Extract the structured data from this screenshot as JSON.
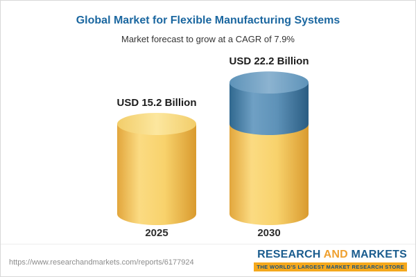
{
  "header": {
    "title": "Global Market for Flexible Manufacturing Systems",
    "subtitle": "Market forecast to grow at a CAGR of 7.9%"
  },
  "chart_data": {
    "type": "bar",
    "bar_style": "cylinder",
    "categories": [
      "2025",
      "2030"
    ],
    "values": [
      15.2,
      22.2
    ],
    "value_labels": [
      "USD 15.2 Billion",
      "USD 22.2 Billion"
    ],
    "unit": "USD Billion",
    "cagr": "7.9%",
    "title": "Global Market for Flexible Manufacturing Systems",
    "subtitle": "Market forecast to grow at a CAGR of 7.9%",
    "ylim": [
      0,
      24
    ],
    "grid": false,
    "legend": "none",
    "colors": {
      "base_segment": "#f6cf66",
      "growth_segment": "#4f87ae",
      "label_text": "#1c1c1c"
    }
  },
  "footer": {
    "source_url": "https://www.researchandmarkets.com/reports/6177924",
    "logo": {
      "research": "RESEARCH",
      "and": "AND",
      "markets": "MARKETS",
      "tagline": "THE WORLD'S LARGEST MARKET RESEARCH STORE"
    }
  }
}
